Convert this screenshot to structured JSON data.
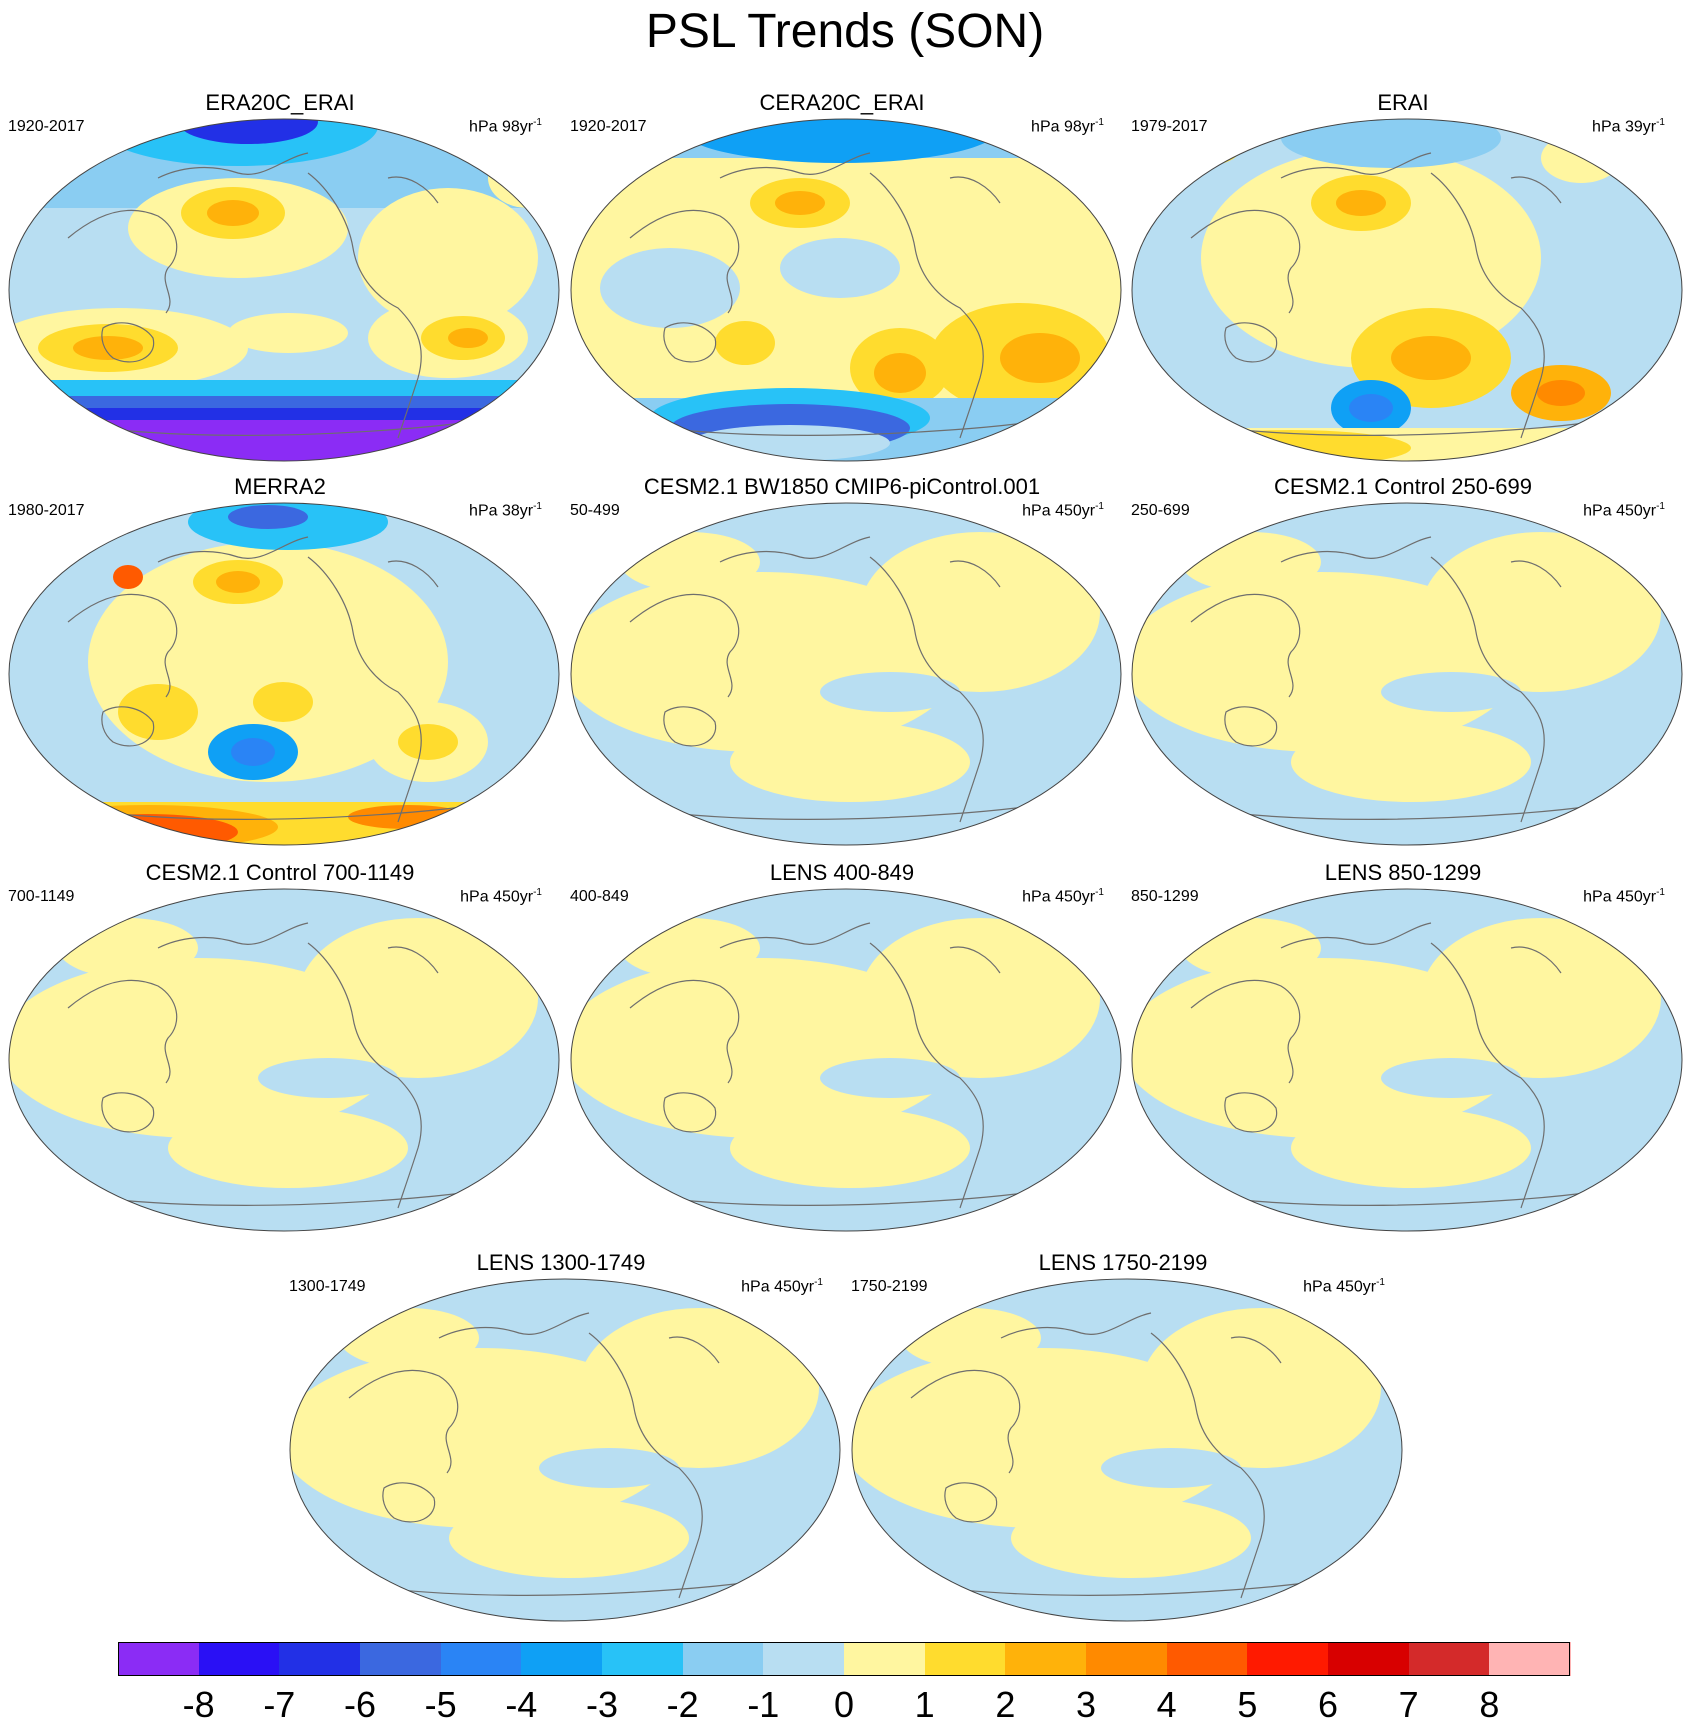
{
  "title": "PSL Trends (SON)",
  "panels": [
    {
      "title": "ERA20C_ERAI",
      "period": "1920-2017",
      "unit": "hPa 98yr",
      "unit_sup": "-1",
      "pattern": "era20c"
    },
    {
      "title": "CERA20C_ERAI",
      "period": "1920-2017",
      "unit": "hPa 98yr",
      "unit_sup": "-1",
      "pattern": "cera20c"
    },
    {
      "title": "ERAI",
      "period": "1979-2017",
      "unit": "hPa 39yr",
      "unit_sup": "-1",
      "pattern": "erai"
    },
    {
      "title": "MERRA2",
      "period": "1980-2017",
      "unit": "hPa 38yr",
      "unit_sup": "-1",
      "pattern": "merra2"
    },
    {
      "title": "CESM2.1 BW1850 CMIP6-piControl.001",
      "period": "50-499",
      "unit": "hPa 450yr",
      "unit_sup": "-1",
      "pattern": "weak"
    },
    {
      "title": "CESM2.1 Control 250-699",
      "period": "250-699",
      "unit": "hPa 450yr",
      "unit_sup": "-1",
      "pattern": "weak"
    },
    {
      "title": "CESM2.1 Control 700-1149",
      "period": "700-1149",
      "unit": "hPa 450yr",
      "unit_sup": "-1",
      "pattern": "weak"
    },
    {
      "title": "LENS 400-849",
      "period": "400-849",
      "unit": "hPa 450yr",
      "unit_sup": "-1",
      "pattern": "weak"
    },
    {
      "title": "LENS 850-1299",
      "period": "850-1299",
      "unit": "hPa 450yr",
      "unit_sup": "-1",
      "pattern": "weak"
    },
    {
      "title": "LENS 1300-1749",
      "period": "1300-1749",
      "unit": "hPa 450yr",
      "unit_sup": "-1",
      "pattern": "weak"
    },
    {
      "title": "LENS 1750-2199",
      "period": "1750-2199",
      "unit": "hPa 450yr",
      "unit_sup": "-1",
      "pattern": "weak"
    }
  ],
  "colorbar": {
    "labels": [
      "-8",
      "-7",
      "-6",
      "-5",
      "-4",
      "-3",
      "-2",
      "-1",
      "0",
      "1",
      "2",
      "3",
      "4",
      "5",
      "6",
      "7",
      "8"
    ],
    "colors": [
      "#8b2cf5",
      "#2a10f5",
      "#2230e6",
      "#3b68e0",
      "#2a84f5",
      "#0fa0f5",
      "#28c2f7",
      "#8acdf2",
      "#b8def2",
      "#fff6a0",
      "#ffdc2e",
      "#ffb20a",
      "#ff8a00",
      "#ff5a00",
      "#ff1a00",
      "#d80000",
      "#d42a2a",
      "#ffb4b4"
    ]
  }
}
